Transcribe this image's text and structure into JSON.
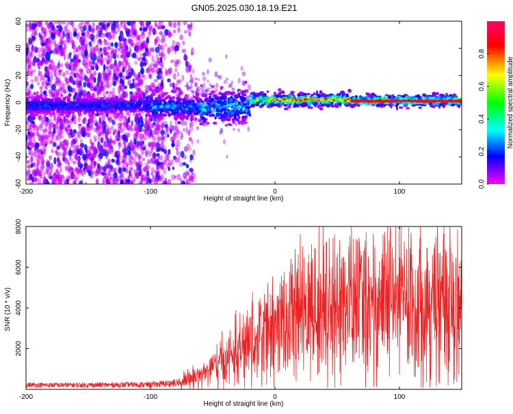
{
  "title": "GN05.2025.030.18.19.E21",
  "colors": {
    "trace": "#ee2222",
    "axis": "#000000"
  },
  "chart_data": [
    {
      "type": "heatmap",
      "xlabel": "Height of straight line (km)",
      "ylabel": "Frequency (Hz)",
      "xlim": [
        -200,
        150
      ],
      "ylim": [
        -60,
        60
      ],
      "x_ticks": [
        "-200",
        "-100",
        "0",
        "100"
      ],
      "y_ticks": [
        "60",
        "40",
        "20",
        "0",
        "-20",
        "-40",
        "-60"
      ],
      "colorbar": {
        "label": "Normalized spectral amplitude",
        "range": [
          0,
          1
        ],
        "ticks": [
          "0.0",
          "0.2",
          "0.4",
          "0.6",
          "0.8"
        ],
        "colormap": [
          "#ff00ff",
          "#0000ff",
          "#00ffff",
          "#00ff00",
          "#ffff00",
          "#ff0000",
          "#ff0066"
        ]
      },
      "description_features": {
        "signal_center_hz": 0,
        "broadband_noise_until_km": -80,
        "strong_signal_from_km": -20
      }
    },
    {
      "type": "line",
      "xlabel": "Height of straight line (km)",
      "ylabel": "SNR (10 * v/v)",
      "xlim": [
        -200,
        150
      ],
      "ylim": [
        0,
        8000
      ],
      "x_ticks": [
        "-200",
        "-100",
        "0",
        "100"
      ],
      "y_ticks": [
        "8000",
        "6000",
        "4000",
        "2000"
      ],
      "series": [
        {
          "envelope_x": [
            -200,
            -150,
            -100,
            -80,
            -60,
            -40,
            -20,
            0,
            20,
            40,
            60,
            80,
            100,
            120,
            150
          ],
          "envelope_y": [
            200,
            200,
            220,
            300,
            700,
            1400,
            2200,
            3000,
            3600,
            4000,
            4200,
            4200,
            4300,
            4300,
            4300
          ]
        }
      ]
    }
  ]
}
